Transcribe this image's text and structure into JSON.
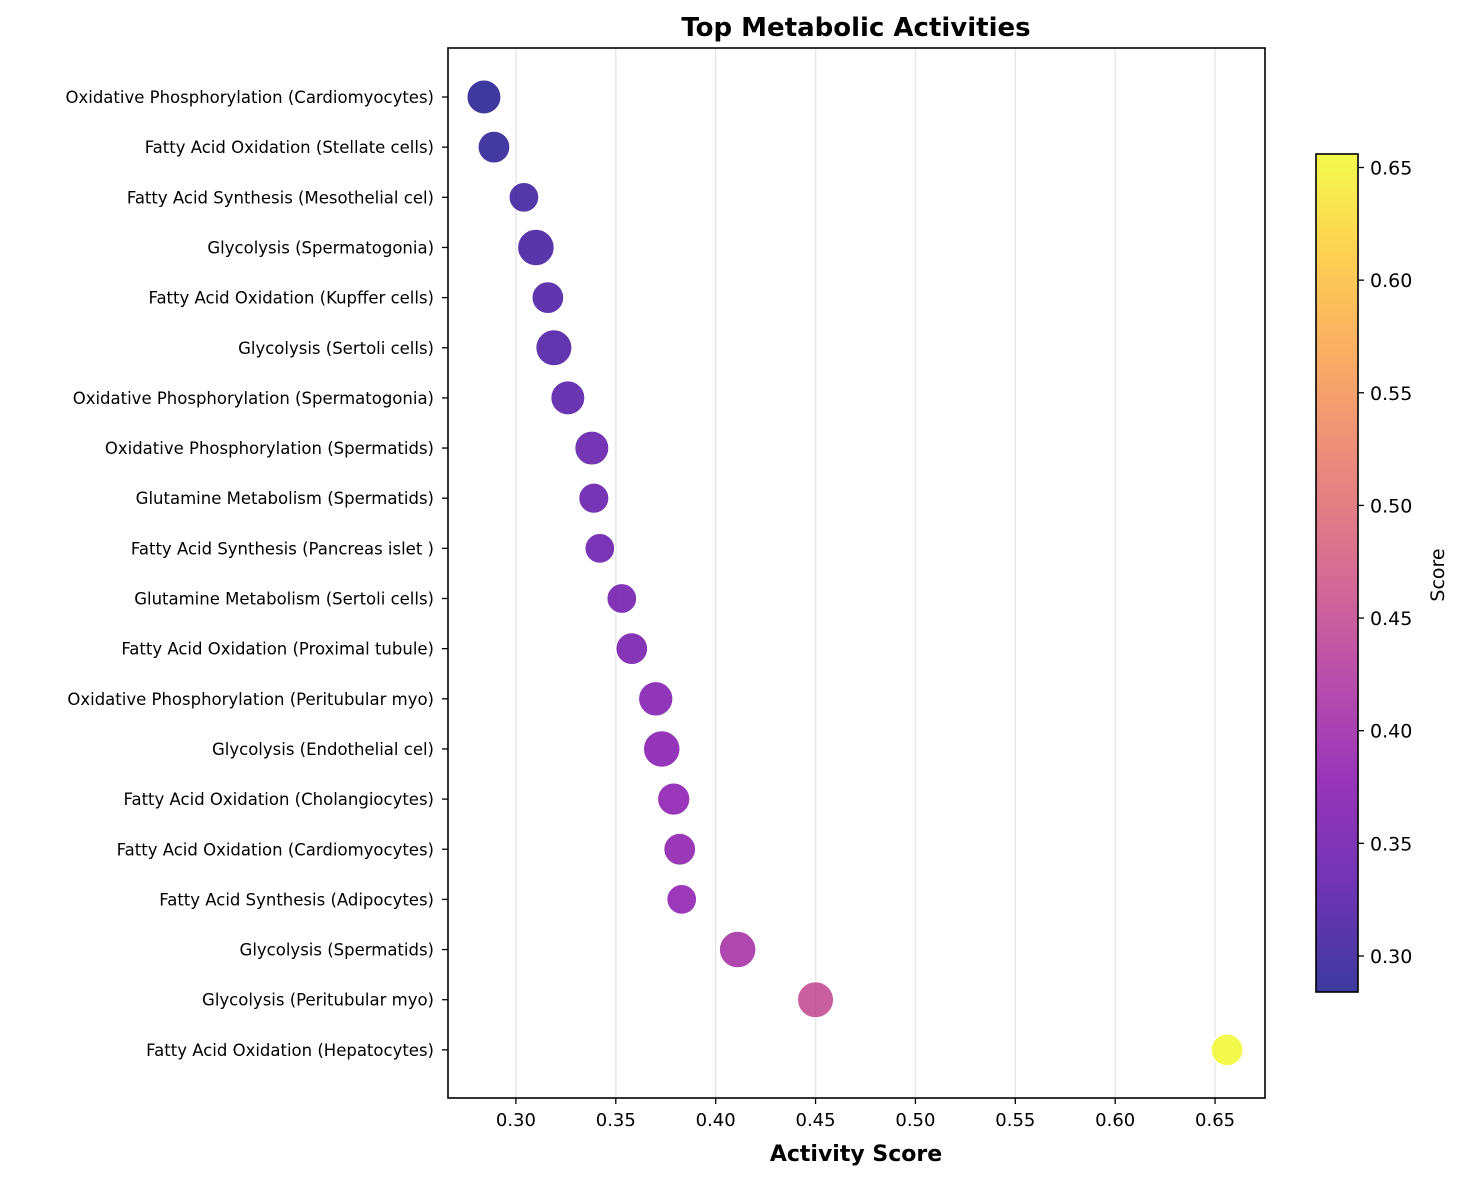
{
  "chart_data": {
    "type": "scatter",
    "title": "Top Metabolic Activities",
    "xlabel": "Activity Score",
    "ylabel": "",
    "xlim": [
      0.266,
      0.675
    ],
    "xticks": [
      "0.30",
      "0.35",
      "0.40",
      "0.45",
      "0.50",
      "0.55",
      "0.60",
      "0.65"
    ],
    "xtick_values": [
      0.3,
      0.35,
      0.4,
      0.45,
      0.5,
      0.55,
      0.6,
      0.65
    ],
    "grid": "x",
    "colormap": "plasma",
    "colorbar": {
      "label": "Score",
      "range": [
        0.284,
        0.656
      ],
      "ticks": [
        "0.30",
        "0.35",
        "0.40",
        "0.45",
        "0.50",
        "0.55",
        "0.60",
        "0.65"
      ],
      "tick_values": [
        0.3,
        0.35,
        0.4,
        0.45,
        0.5,
        0.55,
        0.6,
        0.65
      ]
    },
    "points": [
      {
        "label": "Oxidative Phosphorylation (Cardiomyocytes)",
        "x": 0.284,
        "relative_size": 0.85
      },
      {
        "label": "Fatty Acid Oxidation (Stellate cells)",
        "x": 0.289,
        "relative_size": 0.72
      },
      {
        "label": "Fatty Acid Synthesis (Mesothelial cel)",
        "x": 0.304,
        "relative_size": 0.6
      },
      {
        "label": "Glycolysis (Spermatogonia)",
        "x": 0.31,
        "relative_size": 1.0
      },
      {
        "label": "Fatty Acid Oxidation (Kupffer cells)",
        "x": 0.316,
        "relative_size": 0.72
      },
      {
        "label": "Glycolysis (Sertoli cells)",
        "x": 0.319,
        "relative_size": 0.97
      },
      {
        "label": "Oxidative Phosphorylation (Spermatogonia)",
        "x": 0.326,
        "relative_size": 0.85
      },
      {
        "label": "Oxidative Phosphorylation (Spermatids)",
        "x": 0.338,
        "relative_size": 0.85
      },
      {
        "label": "Glutamine Metabolism (Spermatids)",
        "x": 0.339,
        "relative_size": 0.62
      },
      {
        "label": "Fatty Acid Synthesis (Pancreas islet )",
        "x": 0.342,
        "relative_size": 0.6
      },
      {
        "label": "Glutamine Metabolism (Sertoli cells)",
        "x": 0.353,
        "relative_size": 0.6
      },
      {
        "label": "Fatty Acid Oxidation (Proximal tubule)",
        "x": 0.358,
        "relative_size": 0.72
      },
      {
        "label": "Oxidative Phosphorylation (Peritubular myo)",
        "x": 0.37,
        "relative_size": 0.87
      },
      {
        "label": "Glycolysis (Endothelial cel)",
        "x": 0.373,
        "relative_size": 1.0
      },
      {
        "label": "Fatty Acid Oxidation (Cholangiocytes)",
        "x": 0.379,
        "relative_size": 0.75
      },
      {
        "label": "Fatty Acid Oxidation (Cardiomyocytes)",
        "x": 0.382,
        "relative_size": 0.72
      },
      {
        "label": "Fatty Acid Synthesis (Adipocytes)",
        "x": 0.383,
        "relative_size": 0.6
      },
      {
        "label": "Glycolysis (Spermatids)",
        "x": 0.411,
        "relative_size": 1.0
      },
      {
        "label": "Glycolysis (Peritubular myo)",
        "x": 0.45,
        "relative_size": 0.97
      },
      {
        "label": "Fatty Acid Oxidation (Hepatocytes)",
        "x": 0.656,
        "relative_size": 0.72
      }
    ],
    "colors": {
      "grid": "#e6e6e6",
      "axis": "#000000",
      "marker_edge": "#ffffff"
    }
  }
}
